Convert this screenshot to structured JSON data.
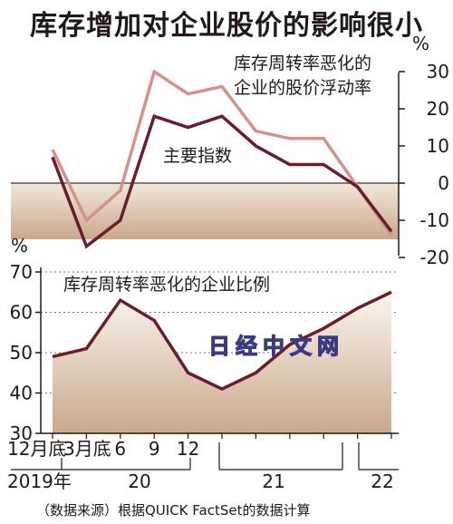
{
  "chart_data": [
    {
      "type": "line",
      "title": "库存增加对企业股价的影响很小",
      "ylabel": "%",
      "ylim": [
        -20,
        30
      ],
      "y_ticks": [
        30,
        20,
        10,
        0,
        -10,
        -20
      ],
      "y_tick_labels": [
        "30",
        "20",
        "10",
        "0",
        "-10",
        "-20"
      ],
      "x": [
        "2019-12",
        "2020-03",
        "2020-06",
        "2020-09",
        "2020-12",
        "2021-03",
        "2021-06",
        "2021-09",
        "2021-12",
        "2022-03",
        "2022-06"
      ],
      "series": [
        {
          "name": "库存周转率恶化的企业的股价浮动率",
          "color": "#d4928f",
          "values": [
            9,
            -10,
            -2,
            30,
            24,
            26,
            14,
            12,
            12,
            -1,
            -14
          ]
        },
        {
          "name": "主要指数",
          "color": "#6b1d2c",
          "values": [
            7,
            -17,
            -10,
            18,
            15,
            18,
            10,
            5,
            5,
            -1,
            -13
          ]
        }
      ],
      "shading": "negative-region"
    },
    {
      "type": "area",
      "ylabel": "%",
      "ylim": [
        30,
        70
      ],
      "y_ticks": [
        70,
        60,
        50,
        40,
        30
      ],
      "y_tick_labels": [
        "70",
        "60",
        "50",
        "40",
        "30"
      ],
      "x": [
        "2019-12",
        "2020-03",
        "2020-06",
        "2020-09",
        "2020-12",
        "2021-03",
        "2021-06",
        "2021-09",
        "2021-12",
        "2022-03",
        "2022-06"
      ],
      "series": [
        {
          "name": "库存周转率恶化的企业比例",
          "color": "#6b1d2c",
          "values": [
            49,
            51,
            63,
            58,
            45,
            41,
            45,
            52,
            56,
            61,
            65
          ]
        }
      ],
      "grid": true
    }
  ],
  "x_axis": {
    "tick_labels": [
      "12月底",
      "3月底",
      "6",
      "9",
      "12"
    ],
    "year_labels": [
      "2019年",
      "20",
      "21",
      "22"
    ]
  },
  "watermark": "日经中文网",
  "source": "（数据来源）根据QUICK FactSet的数据计算",
  "colors": {
    "fill_top": "#ffffff",
    "fill_bottom": "#c4a484",
    "dark_line": "#6b1d2c",
    "light_line": "#d4928f"
  }
}
